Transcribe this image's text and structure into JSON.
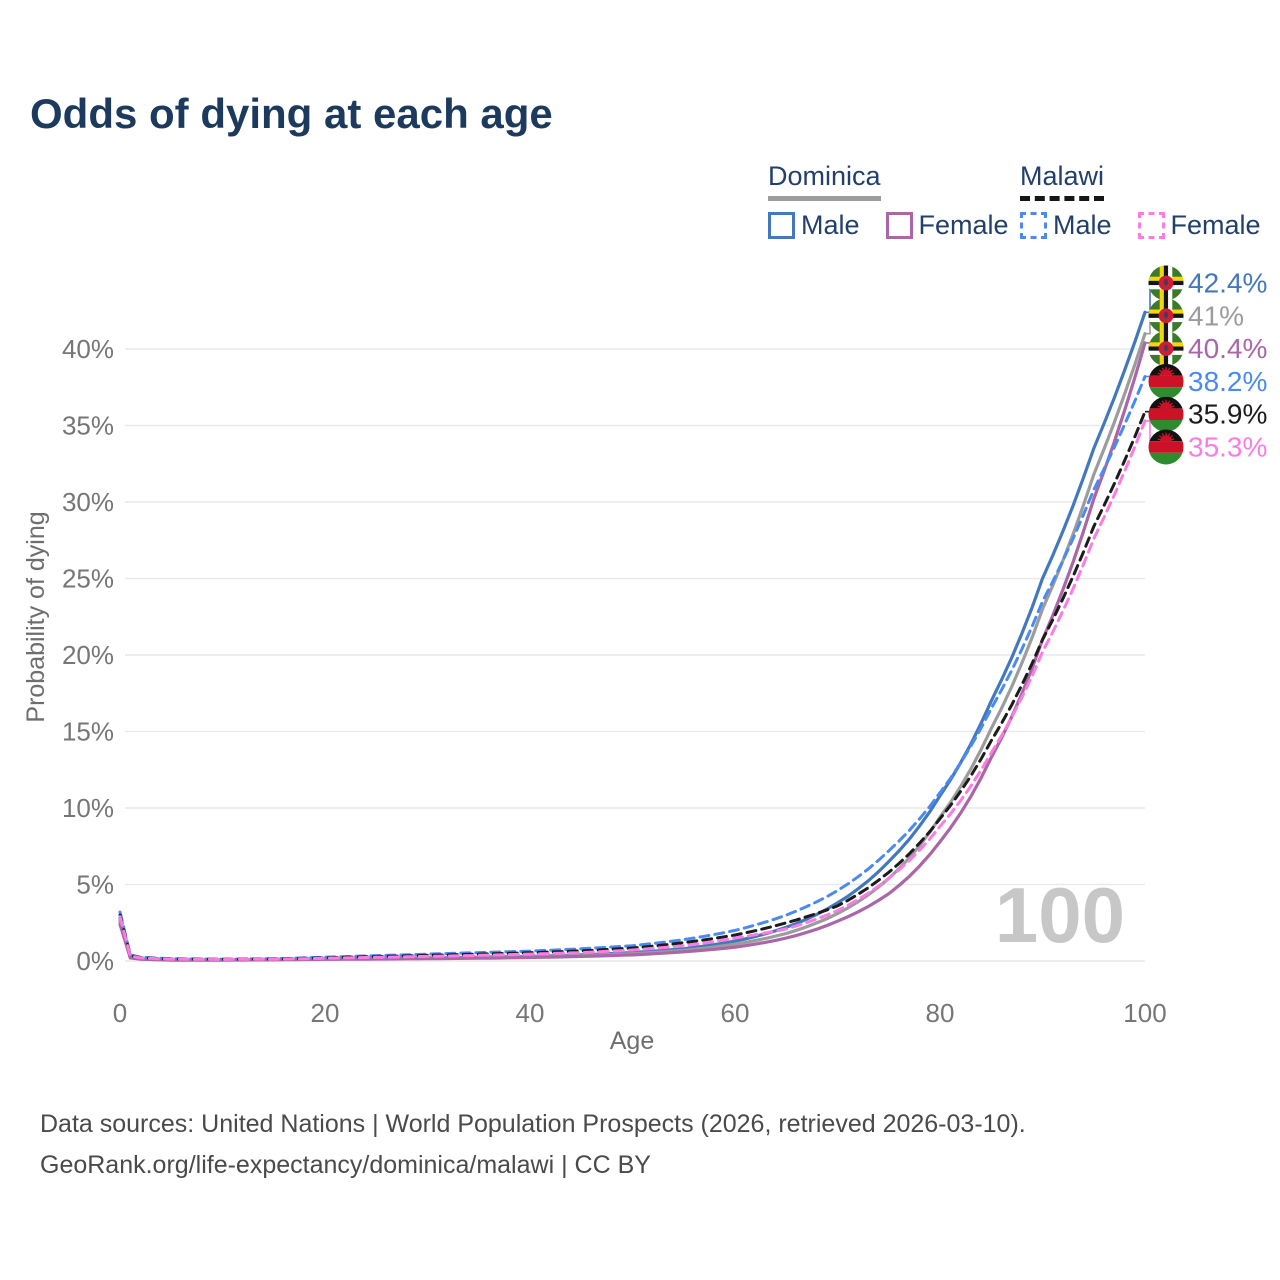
{
  "title": "Odds of dying at each age",
  "watermark": "100",
  "legend": {
    "groups": [
      {
        "country": "Dominica",
        "line_style": "solid",
        "underline_color": "#9c9c9c",
        "items": [
          {
            "label": "Male",
            "color": "#4478bd",
            "dashed": false
          },
          {
            "label": "Female",
            "color": "#aa66a6",
            "dashed": false
          }
        ]
      },
      {
        "country": "Malawi",
        "line_style": "dashed",
        "underline_color": "#161616",
        "items": [
          {
            "label": "Male",
            "color": "#4a8af2",
            "dashed": true
          },
          {
            "label": "Female",
            "color": "#fa7ce4",
            "dashed": true
          }
        ]
      }
    ]
  },
  "footer": {
    "line1": "Data sources: United Nations | World Population Prospects (2026, retrieved 2026-03-10).",
    "line2": "GeoRank.org/life-expectancy/dominica/malawi | CC BY"
  },
  "chart_data": {
    "type": "line",
    "title": "Odds of dying at each age",
    "xlabel": "Age",
    "ylabel": "Probability of dying",
    "xlim": [
      0,
      100
    ],
    "ylim_pct": [
      0,
      44
    ],
    "xticks": [
      0,
      20,
      40,
      60,
      80,
      100
    ],
    "yticks_pct": [
      0,
      5,
      10,
      15,
      20,
      25,
      30,
      35,
      40
    ],
    "ytick_suffix": "%",
    "grid": true,
    "hover_age": "100",
    "x": [
      0,
      1,
      2,
      5,
      10,
      15,
      20,
      25,
      30,
      35,
      40,
      45,
      50,
      55,
      60,
      65,
      70,
      75,
      80,
      85,
      90,
      95,
      100
    ],
    "series": [
      {
        "name": "Dominica Male",
        "country": "Dominica",
        "sex": "Male",
        "flag": "dominica",
        "color": "#4478bd",
        "dashed": false,
        "end_label": "42.4%",
        "values_pct": [
          2.8,
          0.25,
          0.15,
          0.08,
          0.08,
          0.1,
          0.15,
          0.18,
          0.2,
          0.25,
          0.3,
          0.4,
          0.55,
          0.8,
          1.3,
          2.2,
          3.8,
          6.5,
          10.8,
          17.0,
          25.0,
          33.5,
          42.4
        ]
      },
      {
        "name": "Dominica",
        "country": "Dominica",
        "sex": "Both",
        "flag": "dominica",
        "color": "#9c9c9c",
        "dashed": false,
        "end_label": "41%",
        "values_pct": [
          2.6,
          0.23,
          0.14,
          0.07,
          0.07,
          0.09,
          0.13,
          0.16,
          0.18,
          0.22,
          0.27,
          0.36,
          0.48,
          0.7,
          1.1,
          1.8,
          3.1,
          5.4,
          9.4,
          15.2,
          23.0,
          31.8,
          41.0
        ]
      },
      {
        "name": "Dominica Female",
        "country": "Dominica",
        "sex": "Female",
        "flag": "dominica",
        "color": "#aa66a6",
        "dashed": false,
        "end_label": "40.4%",
        "values_pct": [
          2.4,
          0.2,
          0.12,
          0.06,
          0.06,
          0.08,
          0.11,
          0.13,
          0.15,
          0.18,
          0.23,
          0.3,
          0.4,
          0.6,
          0.9,
          1.5,
          2.6,
          4.4,
          7.8,
          13.3,
          21.0,
          30.2,
          40.4
        ]
      },
      {
        "name": "Malawi Male",
        "country": "Malawi",
        "sex": "Male",
        "flag": "malawi",
        "color": "#4a8af2",
        "dashed": true,
        "end_label": "38.2%",
        "values_pct": [
          3.2,
          0.4,
          0.25,
          0.15,
          0.12,
          0.15,
          0.25,
          0.35,
          0.45,
          0.55,
          0.65,
          0.8,
          1.0,
          1.4,
          2.0,
          3.0,
          4.6,
          7.2,
          11.0,
          16.5,
          23.5,
          30.8,
          38.2
        ]
      },
      {
        "name": "Malawi",
        "country": "Malawi",
        "sex": "Both",
        "flag": "malawi",
        "color": "#1c1c1c",
        "dashed": true,
        "end_label": "35.9%",
        "values_pct": [
          3.0,
          0.36,
          0.22,
          0.13,
          0.11,
          0.13,
          0.21,
          0.29,
          0.37,
          0.45,
          0.54,
          0.66,
          0.85,
          1.2,
          1.7,
          2.5,
          3.6,
          5.8,
          9.3,
          14.4,
          21.0,
          28.4,
          35.9
        ]
      },
      {
        "name": "Malawi Female",
        "country": "Malawi",
        "sex": "Female",
        "flag": "malawi",
        "color": "#fa7ce4",
        "dashed": true,
        "end_label": "35.3%",
        "values_pct": [
          2.9,
          0.33,
          0.2,
          0.12,
          0.1,
          0.12,
          0.18,
          0.24,
          0.3,
          0.37,
          0.45,
          0.55,
          0.72,
          1.0,
          1.5,
          2.1,
          3.3,
          5.4,
          8.8,
          13.6,
          20.2,
          27.6,
          35.3
        ]
      }
    ]
  }
}
